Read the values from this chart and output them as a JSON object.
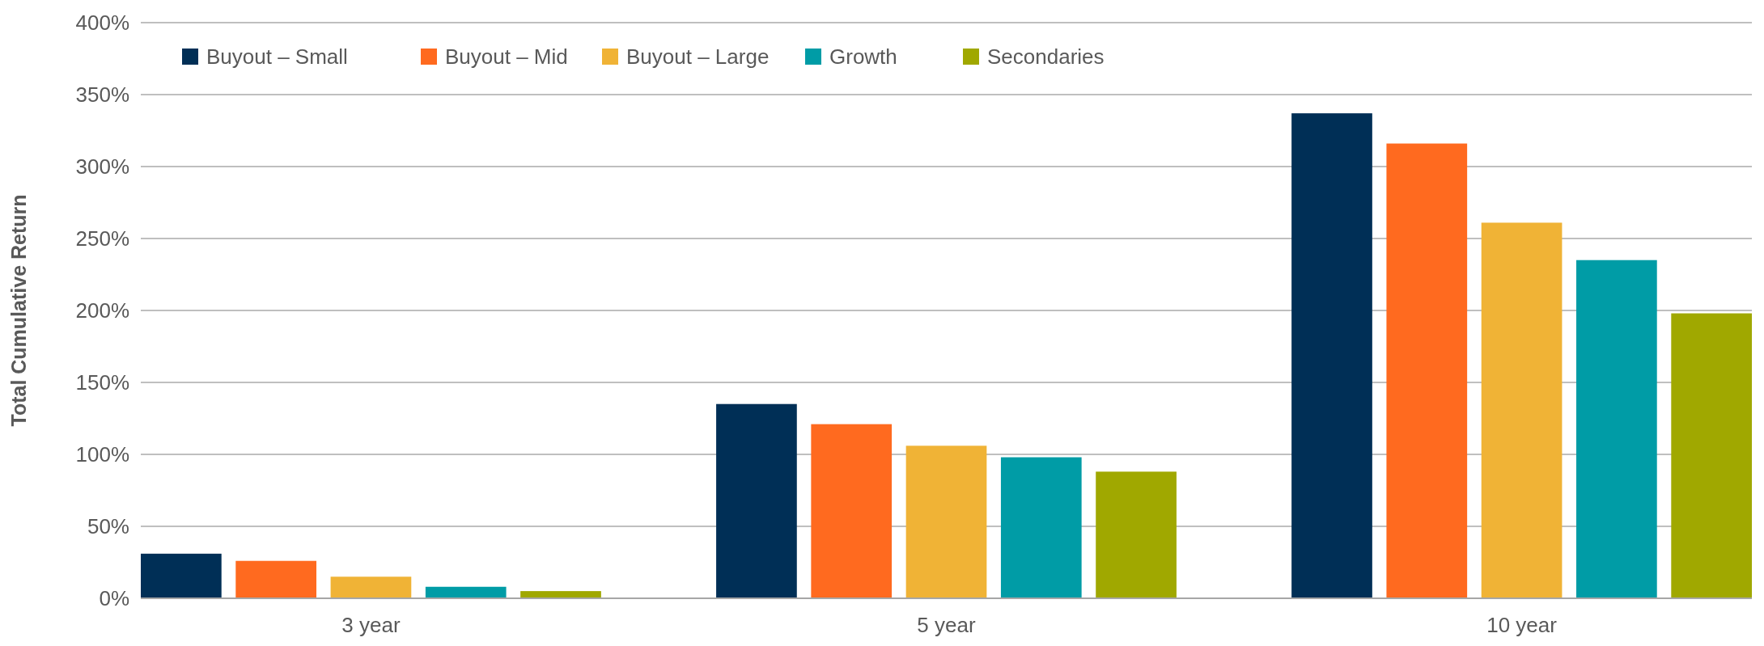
{
  "chart_data": {
    "type": "bar",
    "ylabel": "Total Cumulative Return",
    "categories": [
      "3 year",
      "5 year",
      "10 year"
    ],
    "series": [
      {
        "name": "Buyout – Small",
        "color": "#002f56",
        "values": [
          31,
          135,
          337
        ]
      },
      {
        "name": "Buyout – Mid",
        "color": "#ff6a1f",
        "values": [
          26,
          121,
          316
        ]
      },
      {
        "name": "Buyout – Large",
        "color": "#f0b336",
        "values": [
          15,
          106,
          261
        ]
      },
      {
        "name": "Growth",
        "color": "#009ca6",
        "values": [
          8,
          98,
          235
        ]
      },
      {
        "name": "Secondaries",
        "color": "#a0a800",
        "values": [
          5,
          88,
          198
        ]
      }
    ],
    "ylim": [
      0,
      400
    ],
    "yticks": [
      {
        "value": 0,
        "label": "0%"
      },
      {
        "value": 50,
        "label": "50%"
      },
      {
        "value": 100,
        "label": "100%"
      },
      {
        "value": 150,
        "label": "150%"
      },
      {
        "value": 200,
        "label": "200%"
      },
      {
        "value": 250,
        "label": "250%"
      },
      {
        "value": 300,
        "label": "300%"
      },
      {
        "value": 350,
        "label": "350%"
      },
      {
        "value": 400,
        "label": "400%"
      }
    ],
    "grid": "y",
    "legend": "top left"
  }
}
